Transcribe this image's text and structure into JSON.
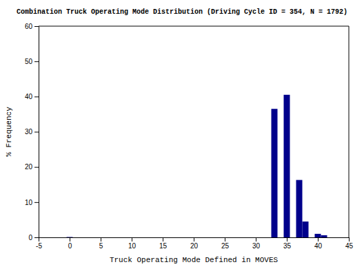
{
  "chart_data": {
    "type": "bar",
    "title": "Combination Truck Operating Mode Distribution (Driving Cycle ID = 354, N = 1792)",
    "xlabel": "Truck Operating Mode Defined in MOVES",
    "ylabel": "% Frequency",
    "x": [
      0,
      33,
      35,
      37,
      38,
      40,
      41
    ],
    "values": [
      0.1,
      36.5,
      40.5,
      16.3,
      4.5,
      1.0,
      0.6
    ],
    "color": "#00008B",
    "xlim": [
      -5,
      45
    ],
    "ylim": [
      0,
      60
    ],
    "xticks": [
      -5,
      0,
      5,
      10,
      15,
      20,
      25,
      30,
      35,
      40,
      45
    ],
    "yticks": [
      0,
      10,
      20,
      30,
      40,
      50,
      60
    ],
    "grid": false
  }
}
